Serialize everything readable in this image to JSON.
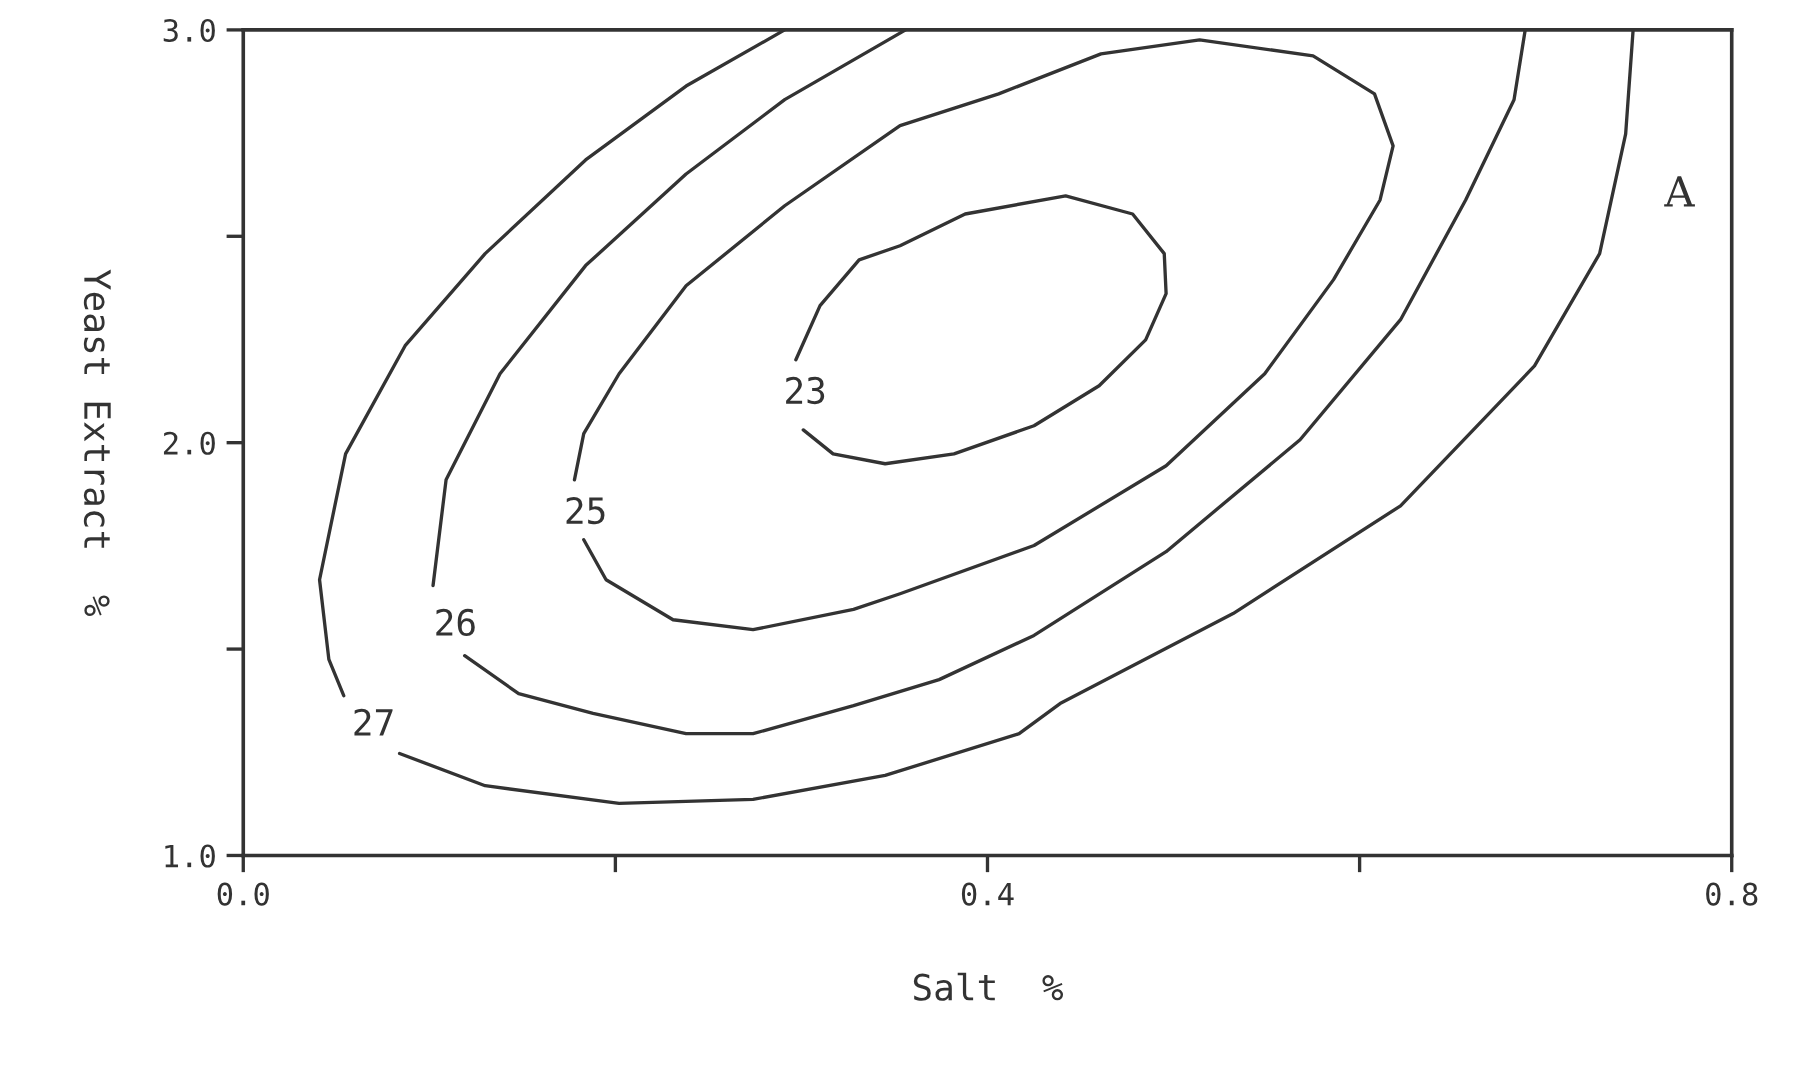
{
  "chart_data": {
    "type": "line",
    "xlabel": "Salt  %",
    "ylabel": "Yeast Extract  %",
    "xlim": [
      0.0,
      0.8
    ],
    "ylim": [
      1.0,
      3.0
    ],
    "xticks": [
      {
        "value": 0.0,
        "label": "0.0"
      },
      {
        "value": 0.2,
        "label": null
      },
      {
        "value": 0.4,
        "label": "0.4"
      },
      {
        "value": 0.6,
        "label": null
      },
      {
        "value": 0.8,
        "label": "0.8"
      }
    ],
    "yticks": [
      {
        "value": 1.0,
        "label": "1.0"
      },
      {
        "value": 1.5,
        "label": null
      },
      {
        "value": 2.0,
        "label": "2.0"
      },
      {
        "value": 2.5,
        "label": null
      },
      {
        "value": 3.0,
        "label": "3.0"
      }
    ],
    "grid": false,
    "legend": false,
    "marker": "none",
    "line_style": "solid",
    "series": [
      {
        "color": "#333333",
        "x": [
          0.301,
          0.317,
          0.345,
          0.382,
          0.425,
          0.46,
          0.485,
          0.496,
          0.495,
          0.478,
          0.442,
          0.388,
          0.353,
          0.331,
          0.31,
          0.297
        ],
        "values": [
          2.031,
          1.973,
          1.949,
          1.973,
          2.041,
          2.138,
          2.249,
          2.361,
          2.458,
          2.554,
          2.598,
          2.554,
          2.477,
          2.443,
          2.332,
          2.201
        ]
      },
      {
        "color": "#333333",
        "x": [
          0.183,
          0.195,
          0.231,
          0.274,
          0.328,
          0.353,
          0.425,
          0.496,
          0.549,
          0.586,
          0.611,
          0.618,
          0.608,
          0.575,
          0.514,
          0.461,
          0.406,
          0.353,
          0.291,
          0.238,
          0.202,
          0.183,
          0.178
        ],
        "values": [
          1.765,
          1.668,
          1.571,
          1.547,
          1.596,
          1.634,
          1.751,
          1.944,
          2.167,
          2.395,
          2.588,
          2.719,
          2.845,
          2.937,
          2.976,
          2.942,
          2.845,
          2.768,
          2.574,
          2.38,
          2.167,
          2.022,
          1.91
        ]
      },
      {
        "color": "#333333",
        "x": [
          0.356,
          0.291,
          0.238,
          0.184,
          0.138,
          0.109,
          0.102,
          null,
          0.119,
          0.148,
          0.188,
          0.238,
          0.274,
          0.328,
          0.374,
          0.425,
          0.496,
          0.568,
          0.622,
          0.657,
          0.683,
          0.689
        ],
        "values": [
          3.0,
          2.831,
          2.651,
          2.429,
          2.167,
          1.91,
          1.654,
          null,
          1.484,
          1.392,
          1.344,
          1.295,
          1.295,
          1.363,
          1.426,
          1.533,
          1.736,
          2.007,
          2.298,
          2.588,
          2.831,
          3.0
        ]
      },
      {
        "color": "#333333",
        "x": [
          0.291,
          0.238,
          0.184,
          0.13,
          0.087,
          0.055,
          0.041,
          0.046,
          0.054,
          null,
          0.084,
          0.13,
          0.202,
          0.274,
          0.345,
          0.417,
          0.439,
          0.532,
          0.622,
          0.694,
          0.729,
          0.743,
          0.747
        ],
        "values": [
          3.0,
          2.864,
          2.685,
          2.458,
          2.235,
          1.973,
          1.668,
          1.475,
          1.387,
          null,
          1.247,
          1.169,
          1.126,
          1.136,
          1.194,
          1.295,
          1.368,
          1.586,
          1.847,
          2.186,
          2.458,
          2.748,
          3.0
        ]
      }
    ],
    "annotations": [
      {
        "text": "23",
        "x": 0.302,
        "y": 2.119
      },
      {
        "text": "25",
        "x": 0.184,
        "y": 1.828
      },
      {
        "text": "26",
        "x": 0.114,
        "y": 1.557
      },
      {
        "text": "27",
        "x": 0.07,
        "y": 1.315
      },
      "A"
    ]
  }
}
